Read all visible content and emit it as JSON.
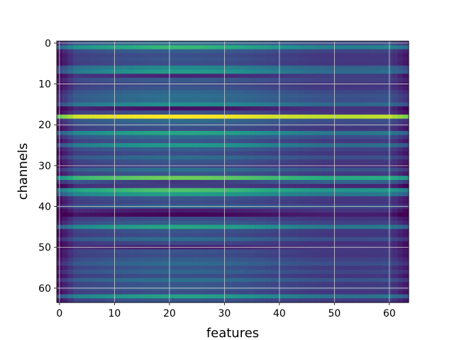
{
  "chart_data": {
    "type": "heatmap",
    "xlabel": "features",
    "ylabel": "channels",
    "x_ticks": [
      0,
      10,
      20,
      30,
      40,
      50,
      60
    ],
    "y_ticks": [
      0,
      10,
      20,
      30,
      40,
      50,
      60
    ],
    "xlim": [
      -0.5,
      63.5
    ],
    "ylim": [
      63.5,
      -0.5
    ],
    "n_features": 64,
    "n_channels": 64,
    "grid": true,
    "colormap": "viridis",
    "value_range": [
      0,
      1
    ],
    "channel_levels": [
      0.3,
      0.55,
      0.25,
      0.2,
      0.22,
      0.2,
      0.4,
      0.45,
      0.15,
      0.25,
      0.2,
      0.22,
      0.28,
      0.32,
      0.3,
      0.42,
      0.1,
      0.2,
      0.95,
      0.3,
      0.25,
      0.2,
      0.5,
      0.3,
      0.22,
      0.45,
      0.25,
      0.2,
      0.3,
      0.22,
      0.18,
      0.32,
      0.22,
      0.7,
      0.25,
      0.15,
      0.62,
      0.48,
      0.22,
      0.2,
      0.28,
      0.12,
      0.05,
      0.2,
      0.25,
      0.5,
      0.22,
      0.2,
      0.3,
      0.18,
      0.12,
      0.22,
      0.2,
      0.25,
      0.3,
      0.22,
      0.28,
      0.2,
      0.32,
      0.22,
      0.25,
      0.2,
      0.48,
      0.22
    ],
    "channel_bumps": [
      0.06,
      0.12,
      0.05,
      0.04,
      0.05,
      0.04,
      0.08,
      0.1,
      -0.04,
      0.05,
      0.04,
      0.05,
      0.06,
      0.06,
      0.06,
      0.08,
      -0.05,
      0.05,
      0.05,
      0.06,
      0.05,
      0.04,
      0.1,
      0.06,
      0.05,
      0.09,
      0.05,
      0.04,
      0.06,
      0.05,
      0.04,
      0.06,
      0.05,
      0.08,
      -0.08,
      0.04,
      0.1,
      0.08,
      0.05,
      0.04,
      0.05,
      -0.04,
      -0.04,
      0.04,
      0.05,
      0.1,
      0.05,
      0.04,
      0.06,
      0.04,
      -0.04,
      0.05,
      0.04,
      0.05,
      0.06,
      0.05,
      0.06,
      0.04,
      0.06,
      0.05,
      0.05,
      0.04,
      0.1,
      0.05
    ]
  }
}
